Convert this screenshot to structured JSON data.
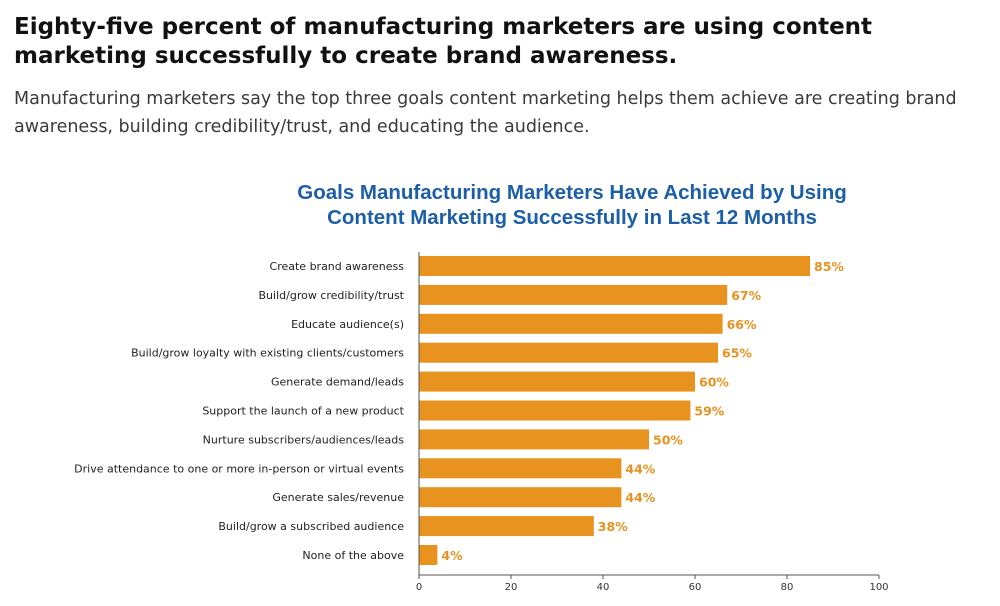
{
  "article": {
    "headline": "Eighty-five percent of manufacturing marketers are using content marketing successfully to create brand awareness.",
    "subhead": "Manufacturing marketers say the top three goals content marketing helps them achieve are creating brand awareness, building credibility/trust, and educating the audience."
  },
  "chart_data": {
    "type": "bar",
    "orientation": "horizontal",
    "title": [
      "Goals Manufacturing Marketers Have Achieved by Using",
      "Content Marketing Successfully in Last 12 Months"
    ],
    "categories": [
      "Create brand awareness",
      "Build/grow credibility/trust",
      "Educate audience(s)",
      "Build/grow loyalty with existing clients/customers",
      "Generate demand/leads",
      "Support the launch of a new product",
      "Nurture subscribers/audiences/leads",
      "Drive attendance to one or more in-person or virtual events",
      "Generate sales/revenue",
      "Build/grow a subscribed audience",
      "None of the above"
    ],
    "values": [
      85,
      67,
      66,
      65,
      60,
      59,
      50,
      44,
      44,
      38,
      4
    ],
    "value_suffix": "%",
    "xlim": [
      0,
      100
    ],
    "xticks": [
      0,
      20,
      40,
      60,
      80,
      100
    ],
    "xlabel": "",
    "ylabel": "",
    "grid": false,
    "bar_color": "#e8921f",
    "label_color": "#e8921f",
    "title_color": "#1d5ea8"
  }
}
